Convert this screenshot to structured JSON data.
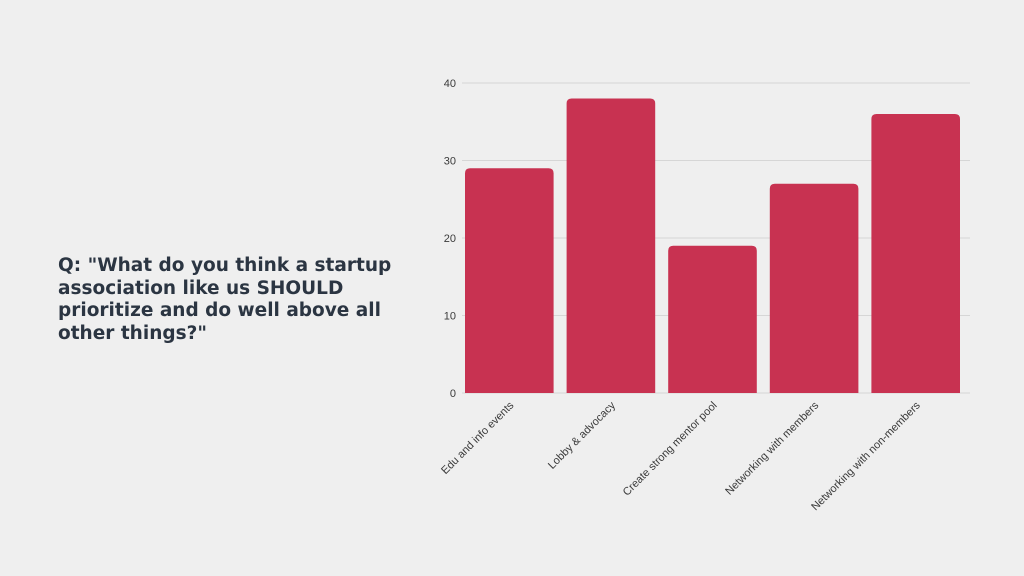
{
  "slide": {
    "question": "Q: \"What do you think a startup association like us SHOULD prioritize and do well above all other things?\""
  },
  "colors": {
    "background": "#efefef",
    "bar": "#c83251",
    "grid": "#d6d6d6",
    "text": "#2b3542"
  },
  "chart_data": {
    "type": "bar",
    "categories": [
      "Edu and info events",
      "Lobby & advocacy",
      "Create strong mentor pool",
      "Networking with members",
      "Networking with non-members"
    ],
    "values": [
      29,
      38,
      19,
      27,
      36
    ],
    "yticks": [
      0,
      10,
      20,
      30,
      40
    ],
    "ylim": [
      0,
      40
    ],
    "title": "",
    "xlabel": "",
    "ylabel": "",
    "grid": true,
    "legend": "none"
  }
}
